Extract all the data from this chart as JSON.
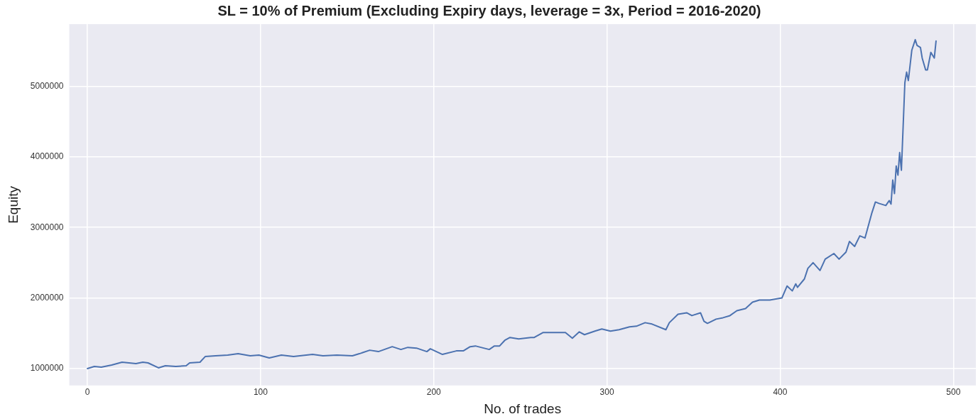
{
  "chart_data": {
    "type": "line",
    "title": "SL = 10% of Premium (Excluding Expiry days, leverage = 3x, Period = 2016-2020)",
    "xlabel": "No. of trades",
    "ylabel": "Equity",
    "xlim": [
      -10.5,
      513
    ],
    "xticks": [
      0,
      100,
      200,
      300,
      400,
      500
    ],
    "ylim": [
      760000,
      5880000
    ],
    "yticks": [
      1000000,
      2000000,
      3000000,
      4000000,
      5000000
    ],
    "grid": true,
    "legend": false,
    "marker": "none",
    "line_style": "solid",
    "series": [
      {
        "color": "#4c72b0",
        "x": [
          0,
          4,
          8,
          14,
          20,
          28,
          32,
          35,
          41,
          45,
          51,
          57,
          59,
          65,
          68,
          74,
          81,
          87,
          94,
          99,
          105,
          112,
          119,
          130,
          136,
          144,
          153,
          157,
          163,
          168,
          176,
          181,
          185,
          190,
          196,
          198,
          205,
          213,
          217,
          221,
          224,
          232,
          235,
          238,
          241,
          244,
          249,
          256,
          258,
          263,
          270,
          276,
          280,
          284,
          287,
          293,
          297,
          302,
          307,
          313,
          317,
          322,
          326,
          334,
          336,
          341,
          346,
          349,
          354,
          356,
          358,
          363,
          367,
          371,
          375,
          380,
          384,
          388,
          394,
          401,
          404,
          407,
          409,
          410,
          414,
          416,
          419,
          423,
          426,
          431,
          434,
          438,
          440,
          443,
          446,
          449,
          453,
          455,
          457,
          461,
          463,
          464,
          465,
          466,
          467,
          468,
          469,
          470,
          472,
          473,
          474,
          476,
          478,
          479,
          481,
          482,
          484,
          485,
          487,
          489,
          490
        ],
        "values": [
          1000000,
          1030000,
          1020000,
          1050000,
          1090000,
          1070000,
          1090000,
          1080000,
          1010000,
          1040000,
          1030000,
          1040000,
          1080000,
          1090000,
          1170000,
          1180000,
          1190000,
          1210000,
          1180000,
          1190000,
          1150000,
          1190000,
          1170000,
          1200000,
          1180000,
          1190000,
          1180000,
          1210000,
          1260000,
          1240000,
          1310000,
          1270000,
          1300000,
          1290000,
          1240000,
          1280000,
          1200000,
          1250000,
          1250000,
          1310000,
          1320000,
          1270000,
          1320000,
          1320000,
          1400000,
          1440000,
          1420000,
          1440000,
          1440000,
          1510000,
          1510000,
          1510000,
          1430000,
          1520000,
          1480000,
          1530000,
          1560000,
          1530000,
          1550000,
          1590000,
          1600000,
          1650000,
          1630000,
          1550000,
          1650000,
          1770000,
          1790000,
          1750000,
          1790000,
          1670000,
          1640000,
          1700000,
          1720000,
          1750000,
          1820000,
          1850000,
          1940000,
          1970000,
          1970000,
          2000000,
          2170000,
          2100000,
          2200000,
          2150000,
          2270000,
          2420000,
          2500000,
          2390000,
          2550000,
          2630000,
          2550000,
          2650000,
          2800000,
          2730000,
          2880000,
          2850000,
          3210000,
          3360000,
          3340000,
          3310000,
          3380000,
          3330000,
          3670000,
          3480000,
          3870000,
          3740000,
          4060000,
          3810000,
          5050000,
          5200000,
          5080000,
          5510000,
          5660000,
          5580000,
          5550000,
          5400000,
          5230000,
          5230000,
          5480000,
          5400000,
          5640000
        ]
      }
    ]
  }
}
